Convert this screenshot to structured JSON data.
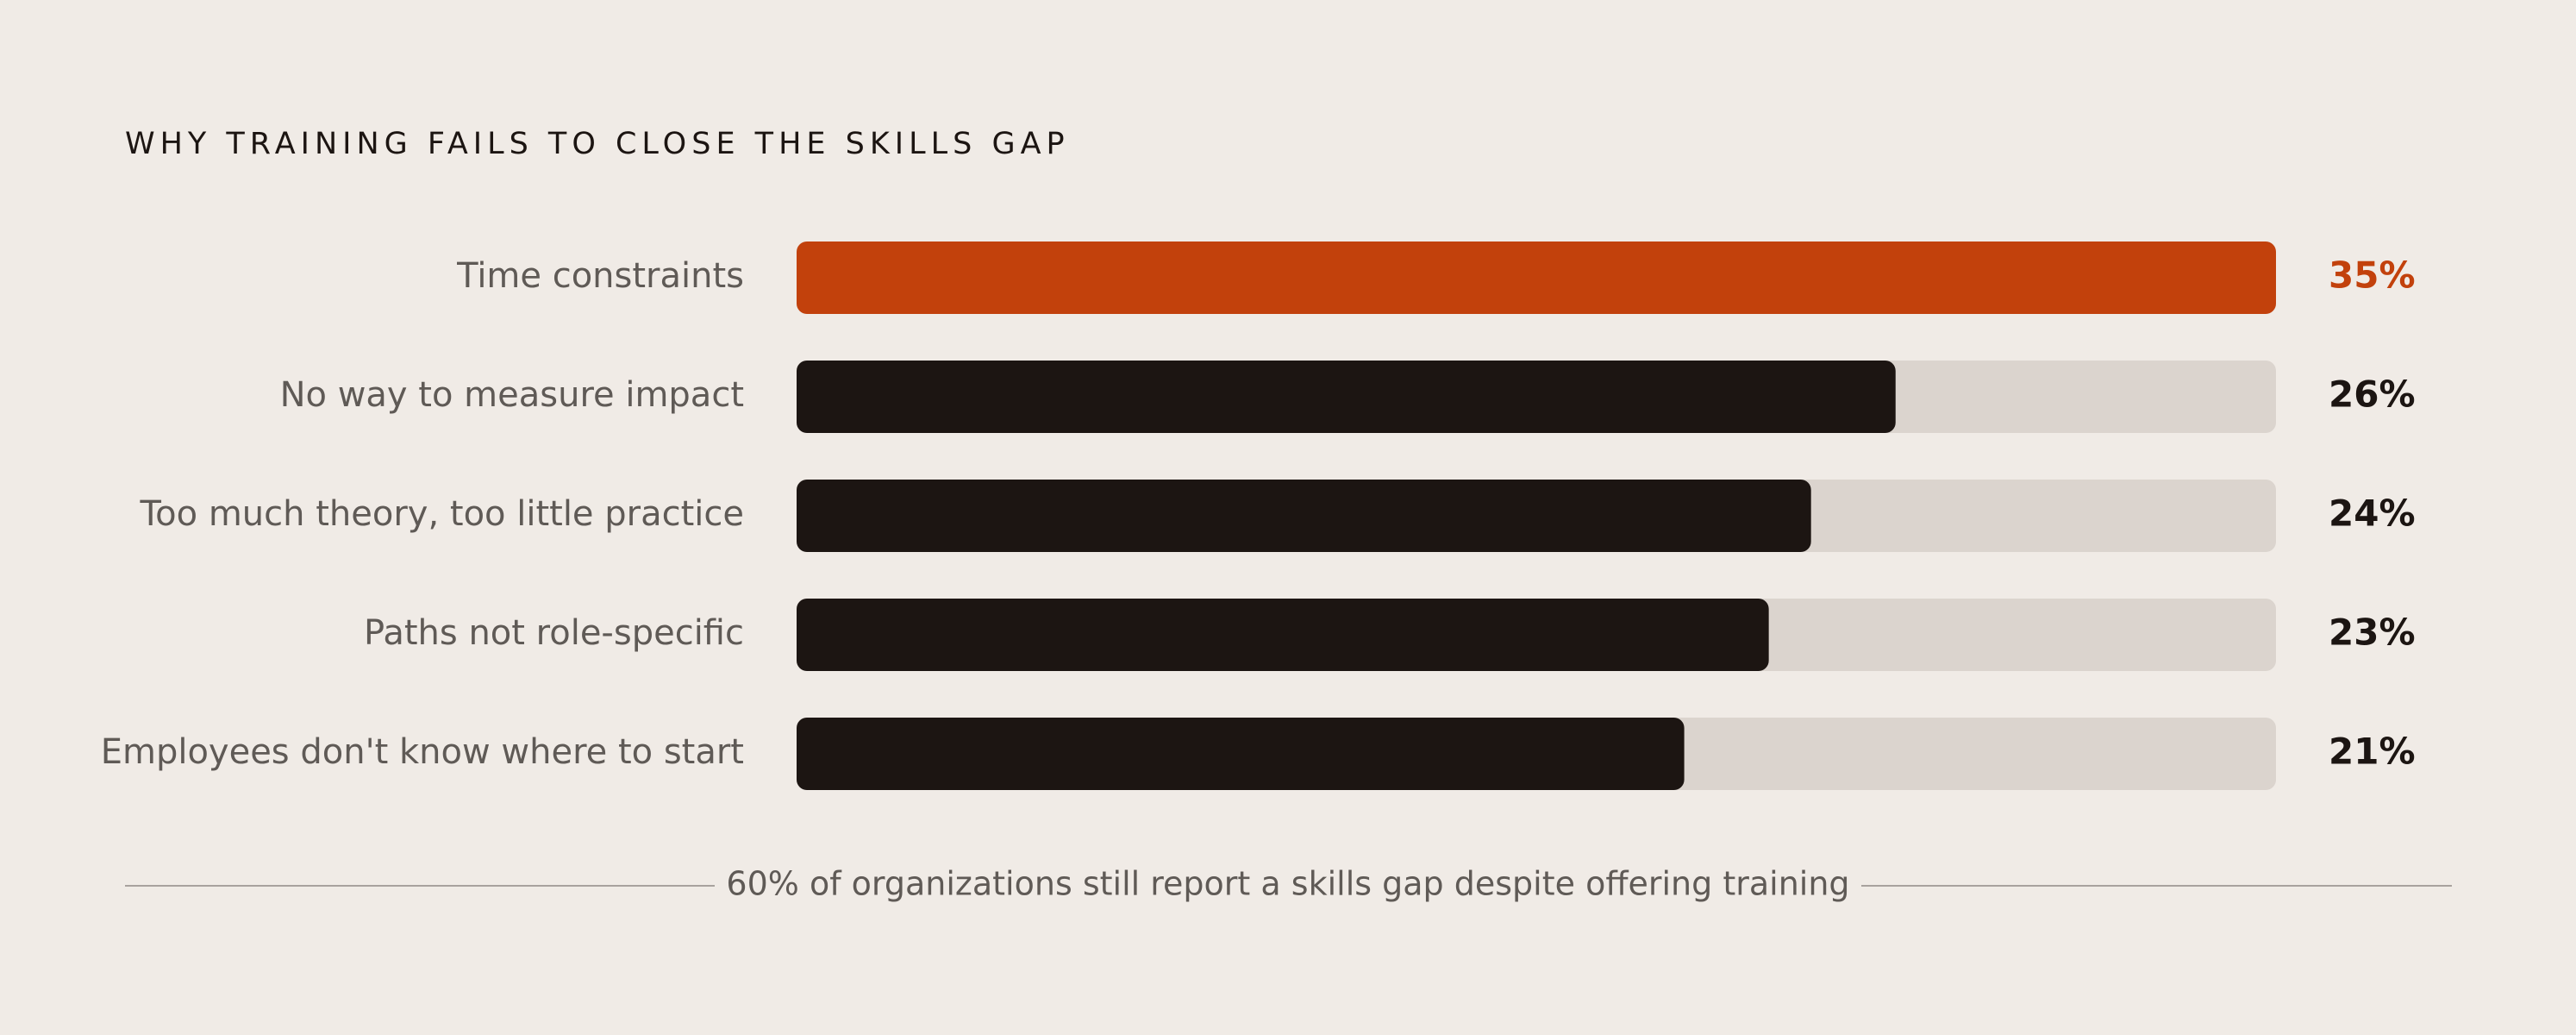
{
  "chart_data": {
    "type": "bar",
    "orientation": "horizontal",
    "title": "WHY TRAINING FAILS TO CLOSE THE SKILLS GAP",
    "categories": [
      "Time constraints",
      "No way to measure impact",
      "Too much theory, too little practice",
      "Paths not role-specific",
      "Employees don't know where to start"
    ],
    "values": [
      35,
      26,
      24,
      23,
      21
    ],
    "value_labels": [
      "35%",
      "26%",
      "24%",
      "23%",
      "21%"
    ],
    "colors": [
      "#c2410c",
      "#1c1512",
      "#1c1512",
      "#1c1512",
      "#1c1512"
    ],
    "track_color": "#dbd4ce",
    "xlim": [
      0,
      35
    ],
    "footnote": "60% of organizations still report a skills gap despite offering training"
  }
}
